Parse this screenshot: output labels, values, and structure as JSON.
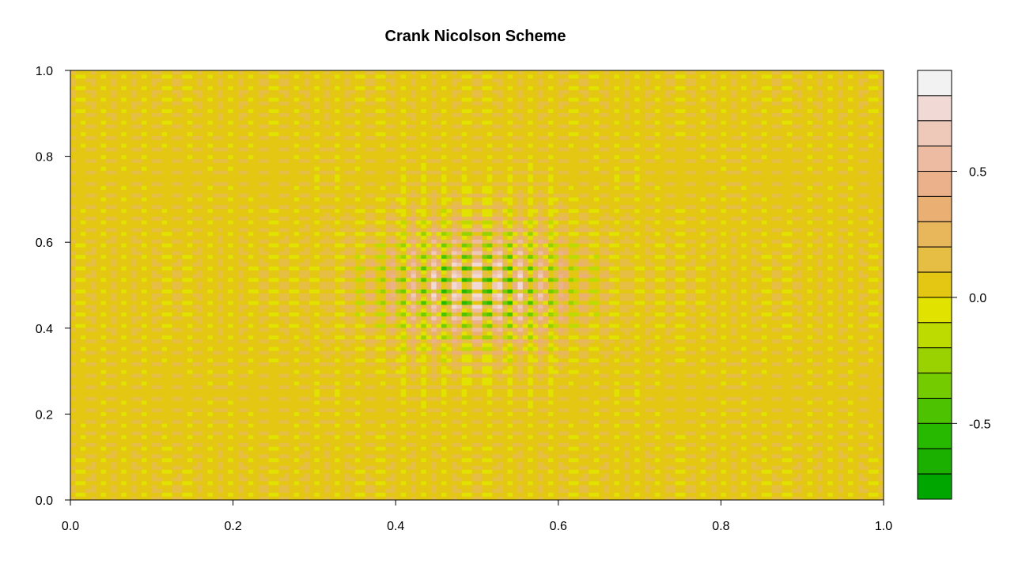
{
  "chart_data": {
    "type": "heatmap",
    "title": "Crank Nicolson Scheme",
    "xlabel": "",
    "ylabel": "",
    "xlim": [
      0.0,
      1.0
    ],
    "ylim": [
      0.0,
      1.0
    ],
    "x_ticks": [
      "0.0",
      "0.2",
      "0.4",
      "0.6",
      "0.8",
      "1.0"
    ],
    "y_ticks": [
      "0.0",
      "0.2",
      "0.4",
      "0.6",
      "0.8",
      "1.0"
    ],
    "colorbar": {
      "range": [
        -0.8,
        0.9
      ],
      "ticks": [
        {
          "value": 0.5,
          "label": "0.5"
        },
        {
          "value": 0.0,
          "label": "0.0"
        },
        {
          "value": -0.5,
          "label": "-0.5"
        }
      ],
      "levels": [
        {
          "min": 0.8,
          "max": 0.9,
          "color": "#F2F2F2"
        },
        {
          "min": 0.7,
          "max": 0.8,
          "color": "#F1D9D5"
        },
        {
          "min": 0.6,
          "max": 0.7,
          "color": "#EEC9BA"
        },
        {
          "min": 0.5,
          "max": 0.6,
          "color": "#ECBBA1"
        },
        {
          "min": 0.4,
          "max": 0.5,
          "color": "#EBB18A"
        },
        {
          "min": 0.3,
          "max": 0.4,
          "color": "#EAB073"
        },
        {
          "min": 0.2,
          "max": 0.3,
          "color": "#E8B75C"
        },
        {
          "min": 0.1,
          "max": 0.2,
          "color": "#E6BE44"
        },
        {
          "min": 0.0,
          "max": 0.1,
          "color": "#E4C713"
        },
        {
          "min": -0.1,
          "max": 0.0,
          "color": "#E2E200"
        },
        {
          "min": -0.2,
          "max": -0.1,
          "color": "#BDDB00"
        },
        {
          "min": -0.3,
          "max": -0.2,
          "color": "#99D200"
        },
        {
          "min": -0.4,
          "max": -0.3,
          "color": "#73CB00"
        },
        {
          "min": -0.5,
          "max": -0.4,
          "color": "#4DC200"
        },
        {
          "min": -0.6,
          "max": -0.5,
          "color": "#27B900"
        },
        {
          "min": -0.7,
          "max": -0.6,
          "color": "#1BB000"
        },
        {
          "min": -0.8,
          "max": -0.7,
          "color": "#00A600"
        }
      ]
    },
    "field": {
      "description_kind": "checkerboard oscillation with central peak",
      "background_range": [
        -0.1,
        0.1
      ],
      "peak_center": [
        0.5,
        0.5
      ],
      "peak_amplitude_max": 0.9,
      "peak_amplitude_min": -0.8
    },
    "grid": false,
    "legend": "right"
  }
}
